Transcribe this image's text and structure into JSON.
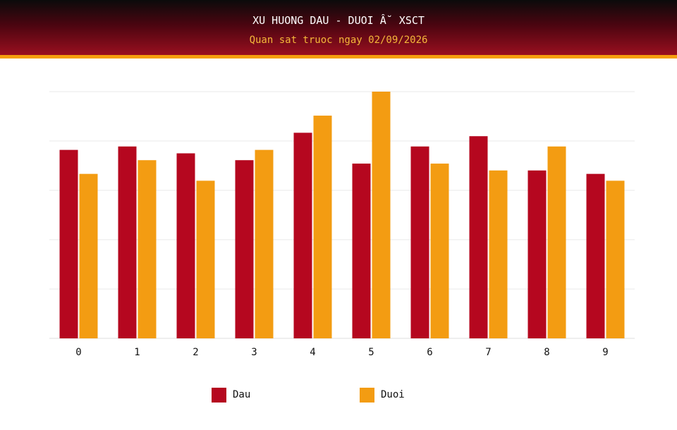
{
  "header": {
    "title": "XU HUONG DAU - DUOI Â˘ XSCT",
    "subtitle": "Quan sat truoc ngay 02/09/2026"
  },
  "colors": {
    "dau": "#b5071f",
    "duoi": "#f39c12"
  },
  "chart_data": {
    "type": "bar",
    "title": "XU HUONG DAU - DUOI Â˘ XSCT",
    "subtitle": "Quan sat truoc ngay 02/09/2026",
    "categories": [
      "0",
      "1",
      "2",
      "3",
      "4",
      "5",
      "6",
      "7",
      "8",
      "9"
    ],
    "series": [
      {
        "name": "Dau",
        "values": [
          11.0,
          11.2,
          10.8,
          10.4,
          12.0,
          10.2,
          11.2,
          11.8,
          9.8,
          9.6
        ]
      },
      {
        "name": "Duoi",
        "values": [
          9.6,
          10.4,
          9.2,
          11.0,
          13.0,
          14.4,
          10.2,
          9.8,
          11.2,
          9.2
        ]
      }
    ],
    "xlabel": "",
    "ylabel": "",
    "ylim": [
      0,
      14.4
    ],
    "grid": true,
    "y_tick_labels_shown": false,
    "legend": "bottom"
  },
  "legend": [
    {
      "label": "Dau",
      "color": "#b5071f"
    },
    {
      "label": "Duoi",
      "color": "#f39c12"
    }
  ]
}
